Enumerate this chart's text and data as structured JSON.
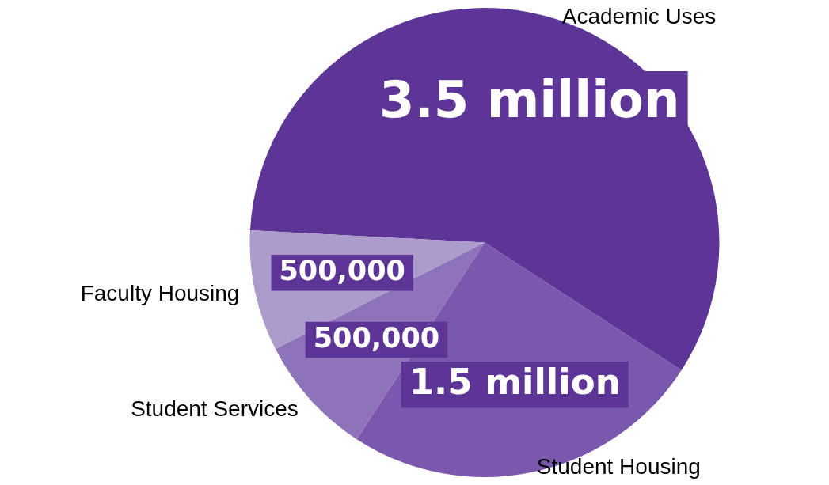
{
  "chart_data": {
    "type": "pie",
    "categories": [
      "Academic Uses",
      "Student Housing",
      "Student Services",
      "Faculty Housing"
    ],
    "values": [
      3500000,
      1500000,
      500000,
      500000
    ],
    "value_labels": [
      "3.5 million",
      "1.5 million",
      "500,000",
      "500,000"
    ],
    "colors": [
      "#5c3596",
      "#7a58ad",
      "#8e72ba",
      "#ab9ccc"
    ],
    "legend": false
  }
}
